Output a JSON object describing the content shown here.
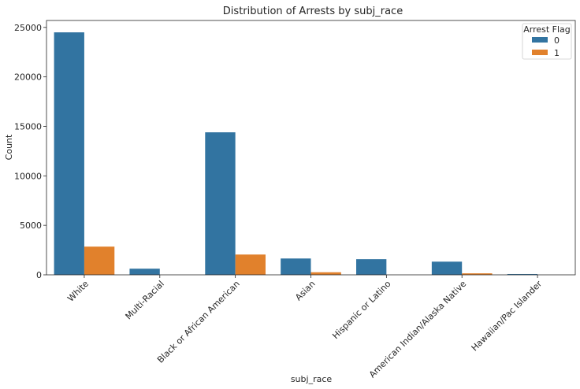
{
  "chart_data": {
    "type": "bar",
    "title": "Distribution of Arrests by subj_race",
    "xlabel": "subj_race",
    "ylabel": "Count",
    "ylim": [
      0,
      25700
    ],
    "yticks": [
      0,
      5000,
      10000,
      15000,
      20000,
      25000
    ],
    "categories": [
      "White",
      "Multi-Racial",
      "Black or African American",
      "Asian",
      "Hispanic or Latino",
      "American Indian/Alaska Native",
      "Hawaiian/Pac Islander"
    ],
    "series": [
      {
        "name": "0",
        "color": "#3274a1",
        "values": [
          24500,
          620,
          14400,
          1650,
          1580,
          1330,
          80
        ]
      },
      {
        "name": "1",
        "color": "#e1812c",
        "values": [
          2850,
          0,
          2050,
          260,
          0,
          150,
          0
        ]
      }
    ],
    "legend": {
      "title": "Arrest Flag",
      "placement": "top-right"
    },
    "grid": false
  }
}
